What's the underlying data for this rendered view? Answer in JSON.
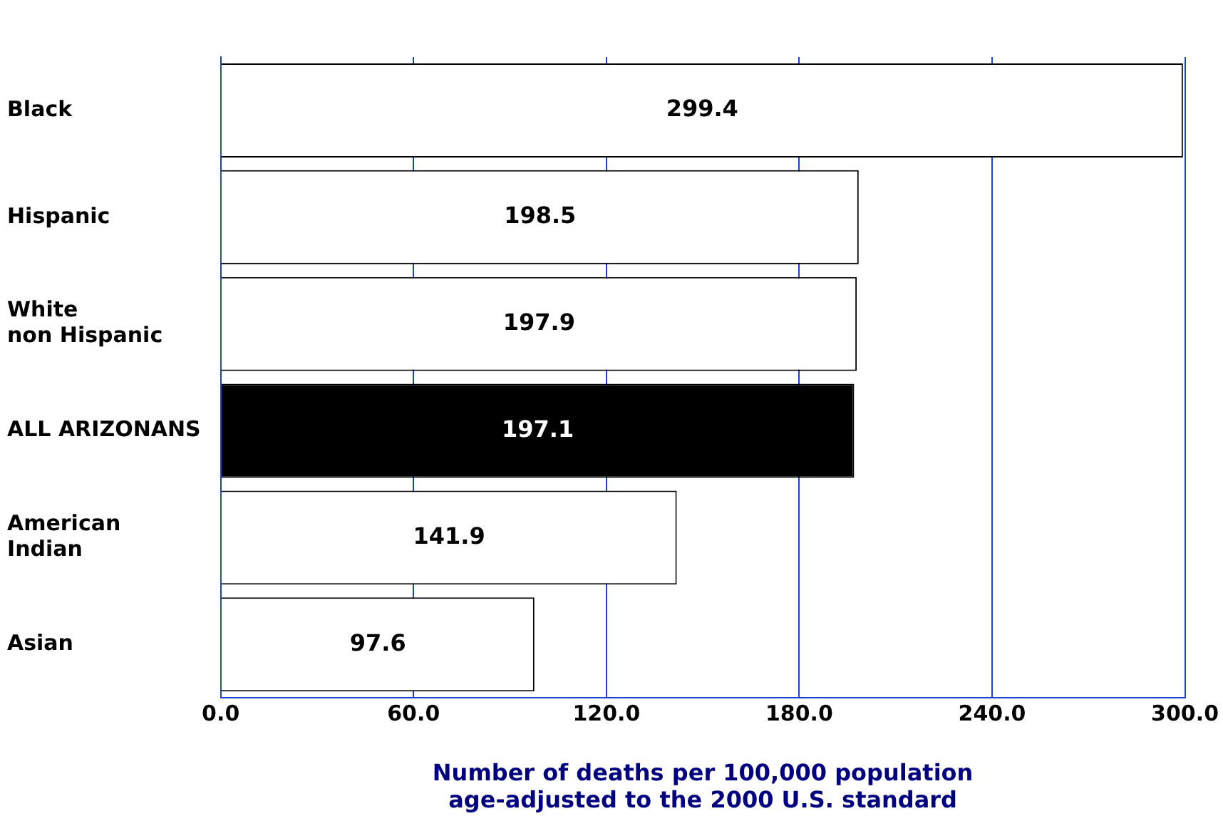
{
  "chart_data": {
    "type": "bar",
    "orientation": "horizontal",
    "categories": [
      "Black",
      "Hispanic",
      "White\nnon Hispanic",
      "ALL ARIZONANS",
      "American\nIndian",
      "Asian"
    ],
    "values": [
      299.4,
      198.5,
      197.9,
      197.1,
      141.9,
      97.6
    ],
    "colors": [
      "#ffffff",
      "#ffffff",
      "#ffffff",
      "#000000",
      "#ffffff",
      "#ffffff"
    ],
    "xlim": [
      0,
      300
    ],
    "xticks": [
      {
        "value": 0,
        "label": "0.0"
      },
      {
        "value": 60,
        "label": "60.0"
      },
      {
        "value": 120,
        "label": "120.0"
      },
      {
        "value": 180,
        "label": "180.0"
      },
      {
        "value": 240,
        "label": "240.0"
      },
      {
        "value": 300,
        "label": "300.0"
      }
    ],
    "xlabel": "Number of deaths per 100,000 population\nage-adjusted to the 2000 U.S. standard",
    "grid": "x",
    "data_labels": true,
    "legend": false
  }
}
